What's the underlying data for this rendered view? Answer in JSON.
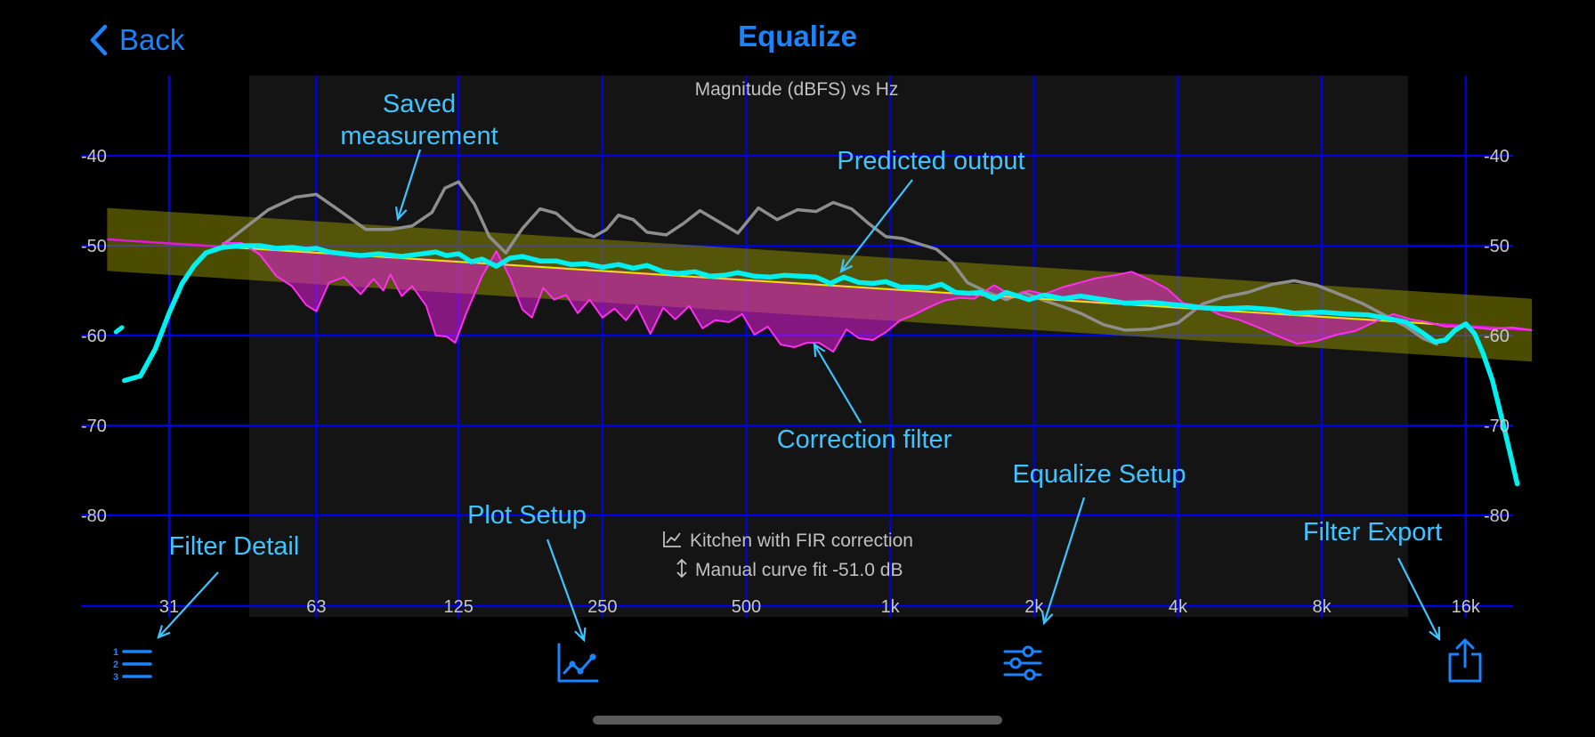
{
  "nav": {
    "back_label": "Back",
    "title": "Equalize"
  },
  "colors": {
    "accent": "#1a84ff",
    "grid": "#0000e8",
    "measurement": "#8e8e8e",
    "predicted": "#00f0f0",
    "correction": "#e01ad8",
    "target": "#e6e600",
    "annotation": "#3fc4ff"
  },
  "toolbar": [
    {
      "id": "filter-detail",
      "icon": "numbered-list-icon"
    },
    {
      "id": "plot-setup",
      "icon": "line-chart-icon"
    },
    {
      "id": "equalize-setup",
      "icon": "sliders-icon"
    },
    {
      "id": "filter-export",
      "icon": "share-icon"
    }
  ],
  "annotations": {
    "saved_measurement": [
      "Saved",
      "measurement"
    ],
    "predicted_output": "Predicted output",
    "correction_filter": "Correction filter",
    "equalize_setup": "Equalize Setup",
    "plot_setup": "Plot Setup",
    "filter_detail": "Filter Detail",
    "filter_export": "Filter Export"
  },
  "chart_data": {
    "type": "line",
    "title": "Magnitude (dBFS) vs Hz",
    "xscale": "log",
    "xlim": [
      23,
      22000
    ],
    "ylim": [
      -90,
      -30
    ],
    "x_ticks": [
      31,
      63,
      125,
      250,
      500,
      1000,
      2000,
      4000,
      8000,
      16000
    ],
    "x_tick_labels": [
      "31",
      "63",
      "125",
      "250",
      "500",
      "1k",
      "2k",
      "4k",
      "8k",
      "16k"
    ],
    "y_ticks": [
      -40,
      -50,
      -60,
      -70,
      -80
    ],
    "y_tick_labels": [
      "-40",
      "-50",
      "-60",
      "-70",
      "-80"
    ],
    "info_lines": [
      "Kitchen with FIR correction",
      "Manual curve fit -51.0 dB"
    ],
    "target_band": {
      "x": [
        23,
        22000
      ],
      "center_db": [
        -49.3,
        -59.4
      ],
      "half_width_db": 3.5
    },
    "series": [
      {
        "role": "target-line",
        "x": [
          23,
          22000
        ],
        "y": [
          -49.3,
          -59.4
        ]
      },
      {
        "role": "saved-measurement",
        "x": [
          40,
          50,
          57,
          63,
          70,
          80,
          90,
          100,
          110,
          117,
          125,
          135,
          145,
          157,
          170,
          185,
          200,
          220,
          240,
          255,
          270,
          290,
          310,
          340,
          370,
          400,
          440,
          480,
          530,
          580,
          640,
          700,
          760,
          830,
          900,
          980,
          1060,
          1150,
          1250,
          1350,
          1450,
          1600,
          1750,
          1900,
          2100,
          2300,
          2500,
          2800,
          3100,
          3500,
          4000,
          4500,
          5000,
          5600,
          6300,
          7000,
          7800,
          8700,
          9700,
          10800,
          12000,
          13000,
          14000
        ],
        "y": [
          -50.0,
          -46.0,
          -44.6,
          -44.3,
          -46.0,
          -48.2,
          -48.2,
          -47.8,
          -46.3,
          -43.6,
          -42.9,
          -45.4,
          -49.0,
          -50.8,
          -48.1,
          -45.9,
          -46.4,
          -48.3,
          -49.0,
          -48.2,
          -46.6,
          -47.1,
          -48.5,
          -48.8,
          -47.5,
          -46.1,
          -47.4,
          -48.6,
          -45.8,
          -47.1,
          -46.0,
          -46.2,
          -45.2,
          -45.9,
          -47.5,
          -49.0,
          -49.2,
          -49.8,
          -50.4,
          -51.9,
          -54.1,
          -55.2,
          -56.0,
          -55.2,
          -56.1,
          -56.8,
          -57.5,
          -58.8,
          -59.4,
          -59.3,
          -58.6,
          -56.5,
          -55.7,
          -55.2,
          -54.3,
          -53.9,
          -54.4,
          -55.4,
          -56.4,
          -57.7,
          -59.0,
          -60.3,
          -61.0
        ]
      },
      {
        "role": "correction-filter",
        "x": [
          40,
          44,
          48,
          52,
          56,
          60,
          63,
          67,
          72,
          78,
          83,
          87,
          90,
          95,
          100,
          107,
          112,
          118,
          123,
          130,
          140,
          150,
          160,
          170,
          178,
          188,
          198,
          210,
          222,
          235,
          250,
          265,
          280,
          295,
          315,
          335,
          355,
          380,
          405,
          430,
          460,
          490,
          520,
          555,
          590,
          630,
          670,
          710,
          760,
          810,
          860,
          920,
          980,
          1050,
          1120,
          1200,
          1300,
          1400,
          1500,
          1650,
          1800,
          1950,
          2100,
          2300,
          2500,
          2700,
          2950,
          3200,
          3500,
          3800,
          4100,
          4500,
          4900,
          5400,
          5900,
          6500,
          7100,
          7800,
          8600,
          9400,
          10300,
          11300,
          12300,
          13300,
          14500,
          16000,
          18000,
          20000,
          22000
        ],
        "y": [
          -49.7,
          -49.7,
          -51.0,
          -53.4,
          -54.5,
          -56.6,
          -57.3,
          -54.1,
          -53.5,
          -55.4,
          -53.7,
          -55.0,
          -53.2,
          -55.6,
          -54.5,
          -56.7,
          -60.0,
          -60.1,
          -60.8,
          -57.4,
          -53.4,
          -50.6,
          -53.5,
          -57.1,
          -58.0,
          -54.7,
          -56.0,
          -55.5,
          -57.5,
          -56.0,
          -58.0,
          -57.0,
          -58.3,
          -56.7,
          -59.8,
          -56.9,
          -58.2,
          -56.7,
          -59.2,
          -58.3,
          -58.5,
          -57.6,
          -59.9,
          -59.0,
          -61.0,
          -61.3,
          -60.8,
          -60.8,
          -61.8,
          -59.3,
          -60.3,
          -60.5,
          -59.6,
          -58.3,
          -57.7,
          -56.9,
          -56.1,
          -55.8,
          -55.9,
          -54.4,
          -55.6,
          -55.0,
          -55.4,
          -54.6,
          -54.1,
          -53.6,
          -53.3,
          -52.9,
          -53.8,
          -54.8,
          -56.4,
          -56.7,
          -57.7,
          -58.3,
          -59.1,
          -60.1,
          -60.9,
          -60.6,
          -59.9,
          -59.5,
          -58.5,
          -57.6,
          -58.2,
          -58.5,
          -59.0,
          -59.0,
          -59.3,
          -59.1,
          -59.4
        ]
      },
      {
        "role": "predicted-output",
        "x": [
          25,
          27,
          29,
          31,
          33,
          35,
          37,
          40,
          44,
          48,
          52,
          56,
          60,
          63,
          67,
          72,
          78,
          85,
          95,
          105,
          112,
          118,
          125,
          133,
          140,
          150,
          160,
          170,
          185,
          200,
          215,
          230,
          250,
          270,
          290,
          310,
          335,
          360,
          390,
          420,
          450,
          480,
          520,
          560,
          600,
          650,
          700,
          750,
          800,
          860,
          920,
          980,
          1050,
          1120,
          1200,
          1280,
          1370,
          1460,
          1550,
          1650,
          1750,
          1850,
          1950,
          2100,
          2300,
          2500,
          2800,
          3100,
          3500,
          4000,
          4500,
          5000,
          5600,
          6300,
          7000,
          8000,
          9000,
          10000,
          11000,
          12000,
          13000,
          13800,
          14500,
          15200,
          16000,
          16700,
          17400,
          18200,
          19000,
          20000,
          20500
        ],
        "y": [
          -65.0,
          -64.5,
          -61.5,
          -57.5,
          -54.2,
          -52.2,
          -50.8,
          -50.2,
          -50.0,
          -50.0,
          -50.3,
          -50.2,
          -50.4,
          -50.3,
          -50.7,
          -50.9,
          -51.1,
          -50.9,
          -51.2,
          -50.9,
          -50.7,
          -51.1,
          -50.9,
          -51.8,
          -51.5,
          -52.3,
          -51.4,
          -51.2,
          -51.7,
          -51.7,
          -52.1,
          -52.0,
          -52.4,
          -52.1,
          -52.5,
          -52.2,
          -52.9,
          -53.1,
          -52.9,
          -53.4,
          -53.3,
          -53.0,
          -53.4,
          -53.5,
          -53.3,
          -53.4,
          -53.5,
          -54.2,
          -53.5,
          -54.1,
          -54.2,
          -54.0,
          -54.6,
          -54.6,
          -54.7,
          -54.3,
          -55.2,
          -55.3,
          -55.2,
          -55.9,
          -55.2,
          -55.6,
          -56.0,
          -55.5,
          -55.9,
          -55.6,
          -56.0,
          -56.4,
          -56.3,
          -56.6,
          -56.9,
          -57.0,
          -56.9,
          -57.1,
          -57.5,
          -57.4,
          -57.6,
          -57.7,
          -58.1,
          -58.5,
          -59.7,
          -60.7,
          -60.5,
          -59.4,
          -58.7,
          -59.8,
          -62.0,
          -65.0,
          -69.0,
          -74.0,
          -76.5
        ]
      },
      {
        "role": "predicted-output-fragment",
        "x": [
          24.0,
          24.7
        ],
        "y": [
          -59.6,
          -59.1
        ]
      }
    ]
  }
}
